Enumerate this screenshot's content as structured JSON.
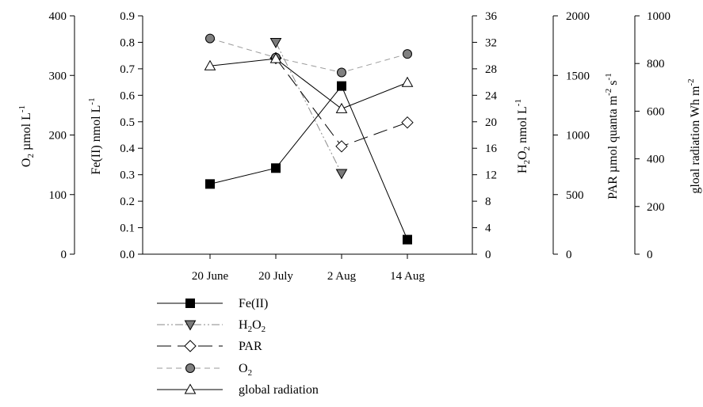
{
  "chart_data": {
    "type": "line",
    "categories": [
      "20 June",
      "20 July",
      "2 Aug",
      "14 Aug"
    ],
    "axes": {
      "o2": {
        "label_parts": [
          [
            "O",
            ""
          ],
          [
            "2",
            "sub"
          ],
          [
            " µmol L",
            ""
          ],
          [
            "-1",
            "sup"
          ]
        ],
        "ticks": [
          "0",
          "100",
          "200",
          "300",
          "400"
        ],
        "ylim": [
          0,
          400
        ]
      },
      "fe": {
        "label_parts": [
          [
            "Fe(II) nmol L",
            ""
          ],
          [
            "-1",
            "sup"
          ]
        ],
        "ticks": [
          "0.0",
          "0.1",
          "0.2",
          "0.3",
          "0.4",
          "0.5",
          "0.6",
          "0.7",
          "0.8",
          "0.9"
        ],
        "ylim": [
          0,
          0.9
        ]
      },
      "h2o2": {
        "label_parts": [
          [
            "H",
            ""
          ],
          [
            "2",
            "sub"
          ],
          [
            "O",
            ""
          ],
          [
            "2",
            "sub"
          ],
          [
            " nmol L",
            ""
          ],
          [
            "-1",
            "sup"
          ]
        ],
        "ticks": [
          "0",
          "4",
          "8",
          "12",
          "16",
          "20",
          "24",
          "28",
          "32",
          "36"
        ],
        "ylim": [
          0,
          36
        ]
      },
      "par": {
        "label_parts": [
          [
            "PAR µmol quanta m",
            ""
          ],
          [
            "-2",
            "sup"
          ],
          [
            " s",
            ""
          ],
          [
            "-1",
            "sup"
          ]
        ],
        "ticks": [
          "0",
          "500",
          "1000",
          "1500",
          "2000"
        ],
        "ylim": [
          0,
          2000
        ]
      },
      "glob": {
        "label_parts": [
          [
            "gloal radiation Wh m",
            ""
          ],
          [
            "-2",
            "sup"
          ]
        ],
        "ticks": [
          "0",
          "200",
          "400",
          "600",
          "800",
          "1000"
        ],
        "ylim": [
          0,
          1000
        ]
      }
    },
    "series": [
      {
        "name_parts": [
          [
            "Fe(II)",
            ""
          ]
        ],
        "axis": "fe",
        "values": [
          0.265,
          0.325,
          0.635,
          0.055
        ],
        "marker": "square",
        "fill": "#000000",
        "line": "solid",
        "color": "#000000"
      },
      {
        "name_parts": [
          [
            "H",
            ""
          ],
          [
            "2",
            "sub"
          ],
          [
            "O",
            ""
          ],
          [
            "2",
            "sub"
          ]
        ],
        "axis": "h2o2",
        "values": [
          null,
          32.0,
          12.2,
          null
        ],
        "marker": "triangle-down",
        "fill": "#7a7a7a",
        "line": "dashdotdot",
        "color": "#8a8a8a"
      },
      {
        "name_parts": [
          [
            "PAR",
            ""
          ]
        ],
        "axis": "par",
        "values": [
          null,
          1645,
          905,
          1105
        ],
        "marker": "diamond",
        "fill": "#ffffff",
        "line": "longdash",
        "color": "#000000"
      },
      {
        "name_parts": [
          [
            "O",
            ""
          ],
          [
            "2",
            "sub"
          ]
        ],
        "axis": "o2",
        "values": [
          362,
          330,
          305,
          336
        ],
        "marker": "circle",
        "fill": "#808080",
        "line": "dash",
        "color": "#9a9a9a"
      },
      {
        "name_parts": [
          [
            "global radiation",
            ""
          ]
        ],
        "axis": "glob",
        "values": [
          790,
          820,
          610,
          720
        ],
        "marker": "triangle-up",
        "fill": "#ffffff",
        "line": "solid",
        "color": "#000000"
      }
    ]
  }
}
